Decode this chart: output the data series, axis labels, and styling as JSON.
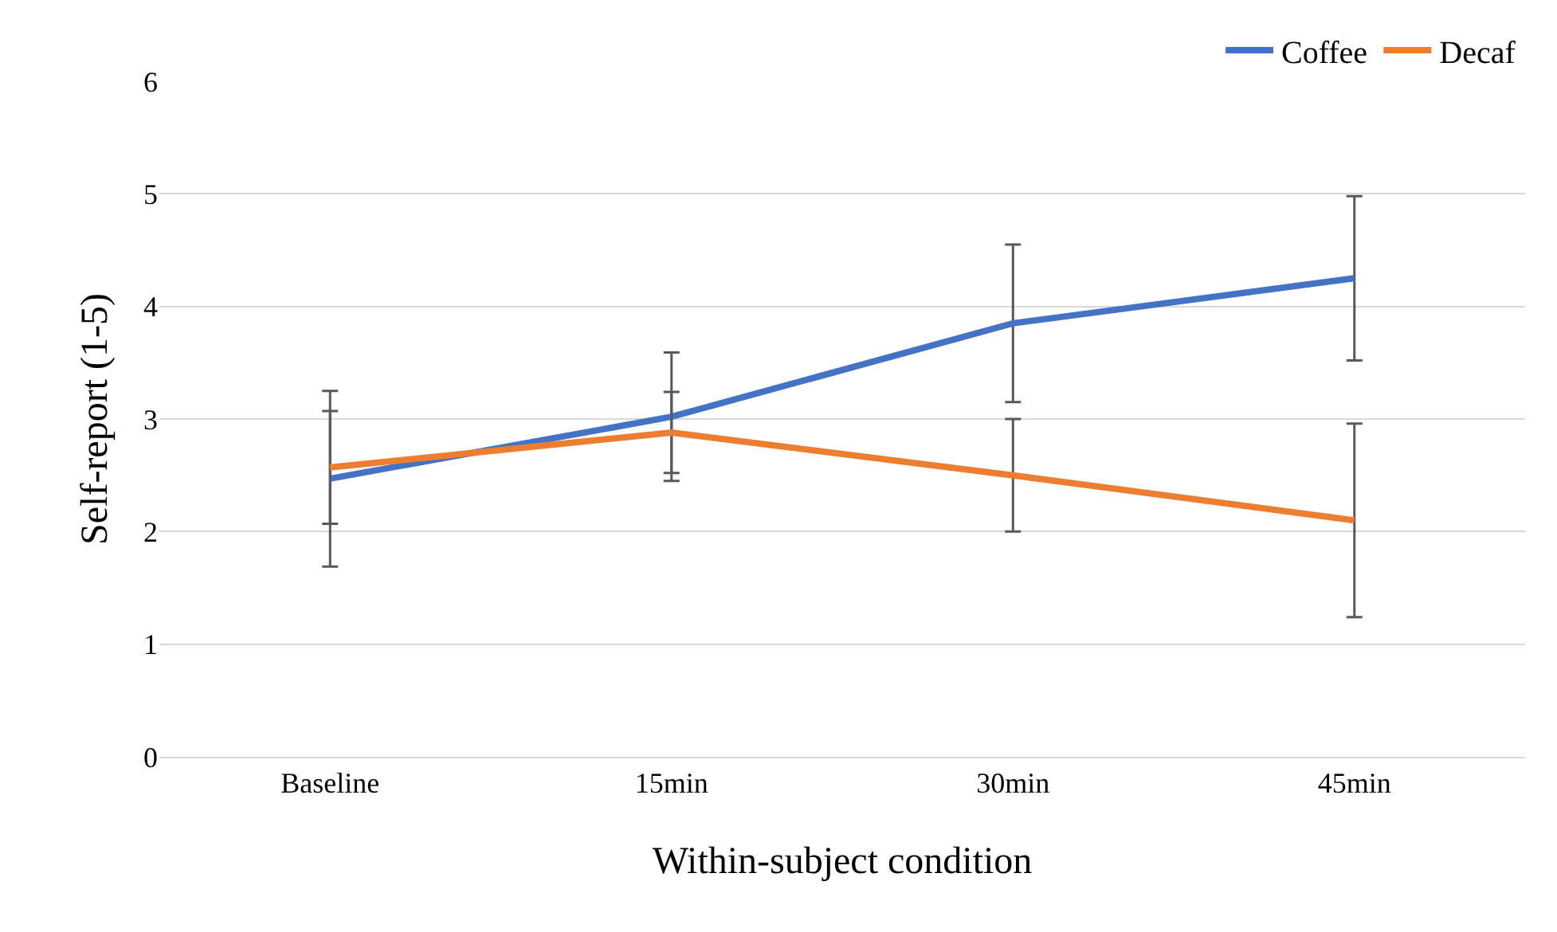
{
  "chart_data": {
    "type": "line",
    "xlabel": "Within-subject condition",
    "ylabel": "Self-report (1-5)",
    "categories": [
      "Baseline",
      "15min",
      "30min",
      "45min"
    ],
    "series": [
      {
        "name": "Coffee",
        "color": "#4472c4",
        "values": [
          2.47,
          3.02,
          3.85,
          4.25
        ],
        "errors": [
          0.78,
          0.57,
          0.7,
          0.73
        ]
      },
      {
        "name": "Decaf",
        "color": "#ed7d31",
        "values": [
          2.57,
          2.88,
          2.5,
          2.1
        ],
        "errors": [
          0.5,
          0.36,
          0.5,
          0.86
        ]
      }
    ],
    "ylim": [
      0,
      6
    ],
    "yticks": [
      0,
      1,
      2,
      3,
      4,
      5,
      6
    ],
    "grid": "y",
    "legend": "top right",
    "marker": "none",
    "line_style": "solid"
  }
}
